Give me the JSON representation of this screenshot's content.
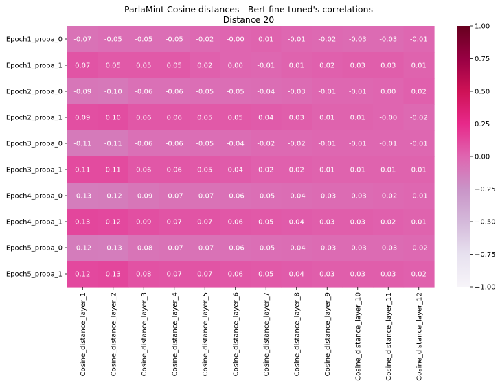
{
  "chart_data": {
    "type": "heatmap",
    "title": "ParlaMint Cosine distances - Bert fine-tuned's correlations",
    "subtitle": "Distance 20",
    "rows": [
      "Epoch1_proba_0",
      "Epoch1_proba_1",
      "Epoch2_proba_0",
      "Epoch2_proba_1",
      "Epoch3_proba_0",
      "Epoch3_proba_1",
      "Epoch4_proba_0",
      "Epoch4_proba_1",
      "Epoch5_proba_0",
      "Epoch5_proba_1"
    ],
    "columns": [
      "Cosine_distance_layer_1",
      "Cosine_distance_layer_2",
      "Cosine_distance_layer_3",
      "Cosine_distance_layer_4",
      "Cosine_distance_layer_5",
      "Cosine_distance_layer_6",
      "Cosine_distance_layer_7",
      "Cosine_distance_layer_8",
      "Cosine_distance_layer_9",
      "Cosine_distance_layer_10",
      "Cosine_distance_layer_11",
      "Cosine_distance_layer_12"
    ],
    "values": [
      [
        -0.07,
        -0.05,
        -0.05,
        -0.05,
        -0.02,
        -0.0,
        0.01,
        -0.01,
        -0.02,
        -0.03,
        -0.03,
        -0.01
      ],
      [
        0.07,
        0.05,
        0.05,
        0.05,
        0.02,
        0.0,
        -0.01,
        0.01,
        0.02,
        0.03,
        0.03,
        0.01
      ],
      [
        -0.09,
        -0.1,
        -0.06,
        -0.06,
        -0.05,
        -0.05,
        -0.04,
        -0.03,
        -0.01,
        -0.01,
        0.0,
        0.02
      ],
      [
        0.09,
        0.1,
        0.06,
        0.06,
        0.05,
        0.05,
        0.04,
        0.03,
        0.01,
        0.01,
        -0.0,
        -0.02
      ],
      [
        -0.11,
        -0.11,
        -0.06,
        -0.06,
        -0.05,
        -0.04,
        -0.02,
        -0.02,
        -0.01,
        -0.01,
        -0.01,
        -0.01
      ],
      [
        0.11,
        0.11,
        0.06,
        0.06,
        0.05,
        0.04,
        0.02,
        0.02,
        0.01,
        0.01,
        0.01,
        0.01
      ],
      [
        -0.13,
        -0.12,
        -0.09,
        -0.07,
        -0.07,
        -0.06,
        -0.05,
        -0.04,
        -0.03,
        -0.03,
        -0.02,
        -0.01
      ],
      [
        0.13,
        0.12,
        0.09,
        0.07,
        0.07,
        0.06,
        0.05,
        0.04,
        0.03,
        0.03,
        0.02,
        0.01
      ],
      [
        -0.12,
        -0.13,
        -0.08,
        -0.07,
        -0.07,
        -0.06,
        -0.05,
        -0.04,
        -0.03,
        -0.03,
        -0.03,
        -0.02
      ],
      [
        0.12,
        0.13,
        0.08,
        0.07,
        0.07,
        0.06,
        0.05,
        0.04,
        0.03,
        0.03,
        0.03,
        0.02
      ]
    ],
    "value_labels": [
      [
        "-0.07",
        "-0.05",
        "-0.05",
        "-0.05",
        "-0.02",
        "-0.00",
        "0.01",
        "-0.01",
        "-0.02",
        "-0.03",
        "-0.03",
        "-0.01"
      ],
      [
        "0.07",
        "0.05",
        "0.05",
        "0.05",
        "0.02",
        "0.00",
        "-0.01",
        "0.01",
        "0.02",
        "0.03",
        "0.03",
        "0.01"
      ],
      [
        "-0.09",
        "-0.10",
        "-0.06",
        "-0.06",
        "-0.05",
        "-0.05",
        "-0.04",
        "-0.03",
        "-0.01",
        "-0.01",
        "0.00",
        "0.02"
      ],
      [
        "0.09",
        "0.10",
        "0.06",
        "0.06",
        "0.05",
        "0.05",
        "0.04",
        "0.03",
        "0.01",
        "0.01",
        "-0.00",
        "-0.02"
      ],
      [
        "-0.11",
        "-0.11",
        "-0.06",
        "-0.06",
        "-0.05",
        "-0.04",
        "-0.02",
        "-0.02",
        "-0.01",
        "-0.01",
        "-0.01",
        "-0.01"
      ],
      [
        "0.11",
        "0.11",
        "0.06",
        "0.06",
        "0.05",
        "0.04",
        "0.02",
        "0.02",
        "0.01",
        "0.01",
        "0.01",
        "0.01"
      ],
      [
        "-0.13",
        "-0.12",
        "-0.09",
        "-0.07",
        "-0.07",
        "-0.06",
        "-0.05",
        "-0.04",
        "-0.03",
        "-0.03",
        "-0.02",
        "-0.01"
      ],
      [
        "0.13",
        "0.12",
        "0.09",
        "0.07",
        "0.07",
        "0.06",
        "0.05",
        "0.04",
        "0.03",
        "0.03",
        "0.02",
        "0.01"
      ],
      [
        "-0.12",
        "-0.13",
        "-0.08",
        "-0.07",
        "-0.07",
        "-0.06",
        "-0.05",
        "-0.04",
        "-0.03",
        "-0.03",
        "-0.03",
        "-0.02"
      ],
      [
        "0.12",
        "0.13",
        "0.08",
        "0.07",
        "0.07",
        "0.06",
        "0.05",
        "0.04",
        "0.03",
        "0.03",
        "0.03",
        "0.02"
      ]
    ],
    "colorbar": {
      "range": [
        -1.0,
        1.0
      ],
      "ticks": [
        -1.0,
        -0.75,
        -0.5,
        -0.25,
        0.0,
        0.25,
        0.5,
        0.75,
        1.0
      ],
      "tick_labels": [
        "−1.00",
        "−0.75",
        "−0.50",
        "−0.25",
        "0.00",
        "0.25",
        "0.50",
        "0.75",
        "1.00"
      ],
      "colormap": "PuRd",
      "colors": [
        "#f7f4f9",
        "#e7e1ef",
        "#d4b9da",
        "#c994c7",
        "#df65b0",
        "#e7298a",
        "#ce1256",
        "#980043",
        "#67001f"
      ]
    }
  }
}
